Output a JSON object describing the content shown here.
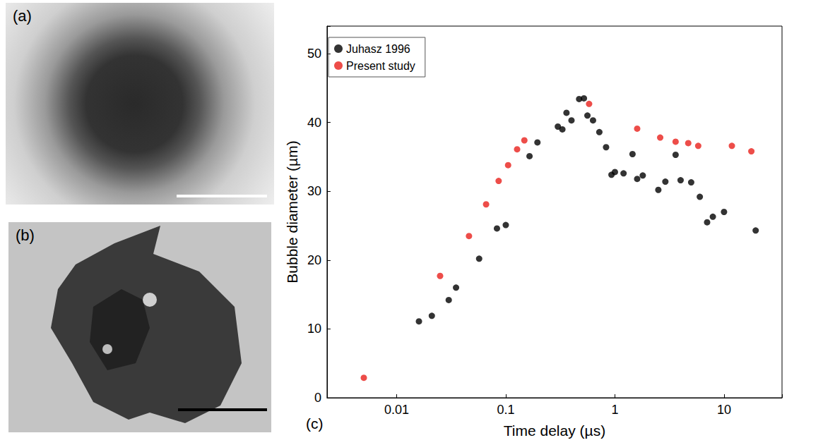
{
  "images": [
    {
      "label": "(a)"
    },
    {
      "label": "(b)"
    }
  ],
  "chart_data": {
    "type": "scatter",
    "annotations": [
      "(c)"
    ],
    "x_label": "Time delay (µs)",
    "y_label": "Bubble diameter (µm)",
    "log": "x",
    "xlim": [
      0.0023,
      34
    ],
    "xticks": [
      0.01,
      0.1,
      1,
      10
    ],
    "ylim": [
      0,
      54
    ],
    "yticks": [
      0,
      10,
      20,
      30,
      40,
      50
    ],
    "grid": false,
    "legend": "upper left",
    "marker": "circle",
    "series": [
      {
        "name": "Juhasz 1996",
        "color": "#000000",
        "x": [
          0.016,
          0.021,
          0.03,
          0.035,
          0.057,
          0.083,
          0.1,
          0.165,
          0.195,
          0.3,
          0.33,
          0.36,
          0.4,
          0.47,
          0.52,
          0.56,
          0.63,
          0.72,
          0.83,
          0.93,
          1.0,
          1.2,
          1.45,
          1.6,
          1.8,
          2.5,
          2.9,
          3.6,
          4.0,
          5.0,
          6.0,
          7.0,
          7.9,
          10.0,
          19.5
        ],
        "values": [
          11.1,
          11.9,
          14.2,
          16.0,
          20.2,
          24.6,
          25.1,
          35.1,
          37.1,
          39.4,
          39.0,
          41.4,
          40.3,
          43.4,
          43.5,
          41.0,
          40.3,
          38.6,
          36.4,
          32.4,
          32.8,
          32.6,
          35.4,
          31.8,
          32.3,
          30.2,
          31.4,
          35.3,
          31.6,
          31.3,
          29.2,
          25.5,
          26.3,
          27.0,
          24.3
        ]
      },
      {
        "name": "Present study",
        "color": "#e8201c",
        "x": [
          0.005,
          0.025,
          0.046,
          0.066,
          0.086,
          0.105,
          0.127,
          0.148,
          0.58,
          1.6,
          2.6,
          3.6,
          4.7,
          5.8,
          11.8,
          17.8
        ],
        "values": [
          2.9,
          17.7,
          23.5,
          28.1,
          31.5,
          33.8,
          36.1,
          37.4,
          42.7,
          39.1,
          37.8,
          37.2,
          37.0,
          36.6,
          36.6,
          35.8
        ]
      }
    ]
  }
}
